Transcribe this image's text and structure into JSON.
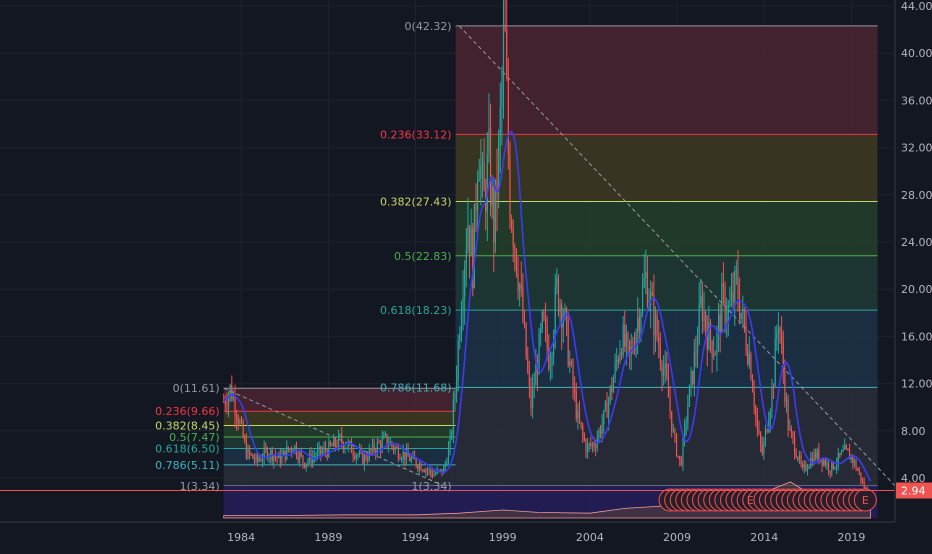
{
  "chart_data": {
    "type": "candlestick",
    "title": "",
    "xlabel": "",
    "ylabel": "",
    "ylim": [
      0,
      44
    ],
    "xlim": [
      1982.5,
      2021.5
    ],
    "x_ticks": [
      "1984",
      "1989",
      "1994",
      "1999",
      "2004",
      "2009",
      "2014",
      "2019"
    ],
    "y_ticks": [
      "4.00",
      "8.00",
      "12.00",
      "16.00",
      "20.00",
      "24.00",
      "28.00",
      "32.00",
      "36.00",
      "40.00",
      "44.00"
    ],
    "last_price": "2.94",
    "colors": {
      "background": "#131722",
      "up": "#26a69a",
      "down": "#ef5350",
      "moving_average": "#3b3bf5",
      "price_line": "#ef5350",
      "label_up": "#26a69a",
      "label_down": "#f23645"
    },
    "price_path": [
      [
        1983.0,
        10.5
      ],
      [
        1983.4,
        11.6
      ],
      [
        1983.8,
        9.4
      ],
      [
        1984.3,
        6.2
      ],
      [
        1984.9,
        5.4
      ],
      [
        1985.5,
        6.3
      ],
      [
        1986.2,
        5.6
      ],
      [
        1987.0,
        6.8
      ],
      [
        1987.6,
        5.3
      ],
      [
        1988.3,
        6.0
      ],
      [
        1989.0,
        6.4
      ],
      [
        1989.7,
        7.2
      ],
      [
        1990.4,
        6.4
      ],
      [
        1991.0,
        5.6
      ],
      [
        1991.7,
        6.6
      ],
      [
        1992.3,
        7.2
      ],
      [
        1993.0,
        6.3
      ],
      [
        1993.8,
        5.5
      ],
      [
        1994.4,
        5.0
      ],
      [
        1995.0,
        4.3
      ],
      [
        1995.6,
        4.6
      ],
      [
        1996.0,
        7.0
      ],
      [
        1996.3,
        12.0
      ],
      [
        1996.7,
        21.0
      ],
      [
        1997.0,
        26.0
      ],
      [
        1997.3,
        22.0
      ],
      [
        1997.6,
        33.0
      ],
      [
        1997.9,
        27.0
      ],
      [
        1998.2,
        31.0
      ],
      [
        1998.5,
        25.0
      ],
      [
        1998.8,
        32.0
      ],
      [
        1999.1,
        42.3
      ],
      [
        1999.4,
        28.0
      ],
      [
        1999.7,
        24.0
      ],
      [
        2000.0,
        20.0
      ],
      [
        2000.3,
        15.0
      ],
      [
        2000.6,
        10.0
      ],
      [
        2000.9,
        13.0
      ],
      [
        2001.3,
        17.0
      ],
      [
        2001.7,
        14.0
      ],
      [
        2002.1,
        20.0
      ],
      [
        2002.5,
        18.0
      ],
      [
        2002.9,
        13.0
      ],
      [
        2003.3,
        9.0
      ],
      [
        2003.8,
        6.5
      ],
      [
        2004.3,
        7.0
      ],
      [
        2004.8,
        9.0
      ],
      [
        2005.3,
        12.0
      ],
      [
        2005.8,
        16.0
      ],
      [
        2006.3,
        14.0
      ],
      [
        2006.8,
        18.0
      ],
      [
        2007.2,
        21.0
      ],
      [
        2007.6,
        18.0
      ],
      [
        2008.0,
        15.0
      ],
      [
        2008.4,
        12.0
      ],
      [
        2008.8,
        7.5
      ],
      [
        2009.2,
        5.0
      ],
      [
        2009.6,
        10.0
      ],
      [
        2010.0,
        14.0
      ],
      [
        2010.4,
        19.0
      ],
      [
        2010.8,
        16.0
      ],
      [
        2011.2,
        15.0
      ],
      [
        2011.6,
        19.0
      ],
      [
        2012.0,
        18.0
      ],
      [
        2012.4,
        20.5
      ],
      [
        2012.8,
        17.0
      ],
      [
        2013.2,
        14.0
      ],
      [
        2013.6,
        8.0
      ],
      [
        2013.9,
        6.0
      ],
      [
        2014.2,
        9.0
      ],
      [
        2014.5,
        12.0
      ],
      [
        2014.8,
        18.0
      ],
      [
        2015.1,
        13.0
      ],
      [
        2015.4,
        8.0
      ],
      [
        2015.8,
        6.5
      ],
      [
        2016.2,
        4.5
      ],
      [
        2016.6,
        5.5
      ],
      [
        2017.0,
        6.0
      ],
      [
        2017.4,
        5.5
      ],
      [
        2017.8,
        4.8
      ],
      [
        2018.2,
        5.5
      ],
      [
        2018.6,
        6.2
      ],
      [
        2019.0,
        5.8
      ],
      [
        2019.4,
        4.5
      ],
      [
        2019.8,
        3.0
      ],
      [
        2020.1,
        2.94
      ]
    ],
    "volume_path": [
      [
        1983.0,
        0.3
      ],
      [
        1986.0,
        0.3
      ],
      [
        1990.0,
        0.4
      ],
      [
        1994.0,
        0.4
      ],
      [
        1996.5,
        0.6
      ],
      [
        1999.0,
        1.0
      ],
      [
        2001.0,
        0.7
      ],
      [
        2004.0,
        0.6
      ],
      [
        2006.0,
        1.2
      ],
      [
        2009.0,
        1.6
      ],
      [
        2011.0,
        1.3
      ],
      [
        2013.0,
        1.6
      ],
      [
        2014.0,
        3.2
      ],
      [
        2015.5,
        4.5
      ],
      [
        2017.0,
        2.5
      ],
      [
        2019.0,
        2.0
      ],
      [
        2020.1,
        1.6
      ]
    ],
    "trendlines": [
      {
        "from": [
          1983.0,
          11.61
        ],
        "to": [
          1995.6,
          3.34
        ]
      },
      {
        "from": [
          1996.5,
          42.32
        ],
        "to": [
          2021.5,
          3.34
        ]
      }
    ],
    "fib_retracements": [
      {
        "x_start": 1983.0,
        "x_end": 1996.3,
        "high": 11.61,
        "low": 3.34,
        "levels": [
          {
            "ratio": 0,
            "price": 11.61,
            "label": "0(11.61)",
            "color": "#9598a1",
            "fill": "#4a2530"
          },
          {
            "ratio": 0.236,
            "price": 9.66,
            "label": "0.236(9.66)",
            "color": "#f23645",
            "fill": "#3e3a22"
          },
          {
            "ratio": 0.382,
            "price": 8.45,
            "label": "0.382(8.45)",
            "color": "#c5d66a",
            "fill": "#243f2a"
          },
          {
            "ratio": 0.5,
            "price": 7.47,
            "label": "0.5(7.47)",
            "color": "#4caf50",
            "fill": "#1f3a35"
          },
          {
            "ratio": 0.618,
            "price": 6.5,
            "label": "0.618(6.50)",
            "color": "#26a69a",
            "fill": "#1d3346"
          },
          {
            "ratio": 0.786,
            "price": 5.11,
            "label": "0.786(5.11)",
            "color": "#3fb3bd",
            "fill": "#2a2e3a"
          },
          {
            "ratio": 1,
            "price": 3.34,
            "label": "1(3.34)",
            "color": "#9598a1"
          }
        ]
      },
      {
        "x_start": 1996.3,
        "x_end": 2020.5,
        "high": 42.32,
        "low": 3.34,
        "levels": [
          {
            "ratio": 0,
            "price": 42.32,
            "label": "0(42.32)",
            "color": "#9598a1",
            "fill": "#4a2530"
          },
          {
            "ratio": 0.236,
            "price": 33.12,
            "label": "0.236(33.12)",
            "color": "#f23645",
            "fill": "#3e3a22"
          },
          {
            "ratio": 0.382,
            "price": 27.43,
            "label": "0.382(27.43)",
            "color": "#c5d66a",
            "fill": "#243f2a"
          },
          {
            "ratio": 0.5,
            "price": 22.83,
            "label": "0.5(22.83)",
            "color": "#4caf50",
            "fill": "#1f3a35"
          },
          {
            "ratio": 0.618,
            "price": 18.23,
            "label": "0.618(18.23)",
            "color": "#26a69a",
            "fill": "#1d3346"
          },
          {
            "ratio": 0.786,
            "price": 11.68,
            "label": "0.786(11.68)",
            "color": "#3fb3bd",
            "fill": "#2a2e3a"
          },
          {
            "ratio": 1,
            "price": 3.34,
            "label": "1(3.34)",
            "color": "#9598a1"
          }
        ]
      }
    ],
    "earnings_marker_label": "E"
  }
}
